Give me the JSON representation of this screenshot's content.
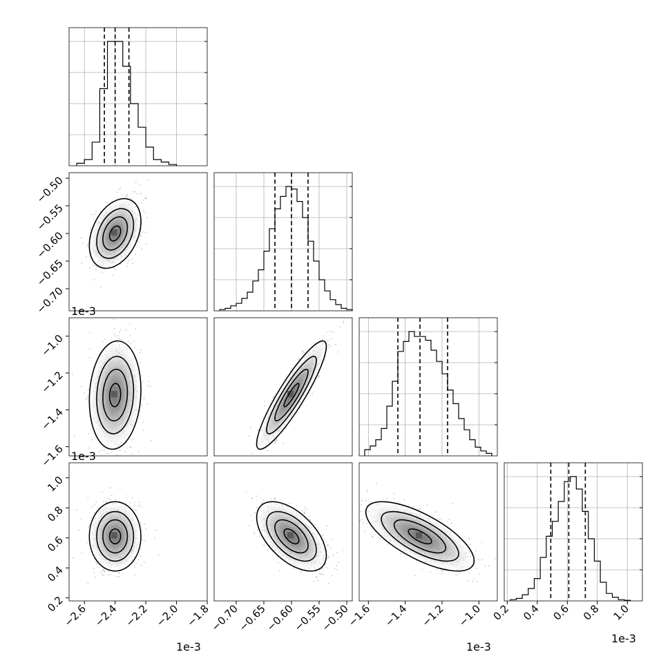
{
  "chart_data": [
    {
      "panel": "hist-0",
      "type": "bar",
      "style": "step histogram",
      "x_offset_label": "1e-3",
      "xlim": [
        -2.7,
        -1.8
      ],
      "xticks": [
        "-2.6",
        "-2.4",
        "-2.2",
        "-2.0",
        "-1.8"
      ],
      "xtick_values": [
        -2.6,
        -2.4,
        -2.2,
        -2.0,
        -1.8
      ],
      "bin_edges": [
        -2.65,
        -2.6,
        -2.55,
        -2.5,
        -2.45,
        -2.4,
        -2.35,
        -2.3,
        -2.25,
        -2.2,
        -2.15,
        -2.1,
        -2.05,
        -2.0
      ],
      "counts": [
        0.02,
        0.05,
        0.19,
        0.62,
        1.0,
        1.0,
        0.8,
        0.5,
        0.31,
        0.15,
        0.05,
        0.03,
        0.01
      ],
      "quantiles": [
        -2.47,
        -2.4,
        -2.31
      ],
      "grid": true
    },
    {
      "panel": "hist-1",
      "type": "bar",
      "style": "step histogram",
      "xlim": [
        -0.74,
        -0.49
      ],
      "xtick_values": [
        -0.7,
        -0.65,
        -0.6,
        -0.55,
        -0.5
      ],
      "bin_edges": [
        -0.73,
        -0.72,
        -0.71,
        -0.7,
        -0.69,
        -0.68,
        -0.67,
        -0.66,
        -0.65,
        -0.64,
        -0.63,
        -0.62,
        -0.61,
        -0.6,
        -0.59,
        -0.58,
        -0.57,
        -0.56,
        -0.55,
        -0.54,
        -0.53,
        -0.52,
        -0.51,
        -0.5,
        -0.49
      ],
      "counts": [
        0.01,
        0.02,
        0.04,
        0.06,
        0.1,
        0.15,
        0.24,
        0.33,
        0.48,
        0.66,
        0.82,
        0.92,
        1.0,
        0.98,
        0.88,
        0.75,
        0.56,
        0.4,
        0.25,
        0.16,
        0.09,
        0.05,
        0.02,
        0.01
      ],
      "quantiles": [
        -0.63,
        -0.6,
        -0.57
      ],
      "grid": true
    },
    {
      "panel": "hist-2",
      "type": "bar",
      "style": "step histogram",
      "x_offset_label": "1e-3",
      "xlim": [
        -1.65,
        -0.9
      ],
      "xticks": [
        "-1.6",
        "-1.4",
        "-1.2",
        "-1.0"
      ],
      "xtick_values": [
        -1.6,
        -1.4,
        -1.2,
        -1.0
      ],
      "bin_edges": [
        -1.62,
        -1.59,
        -1.56,
        -1.53,
        -1.5,
        -1.47,
        -1.44,
        -1.41,
        -1.38,
        -1.35,
        -1.32,
        -1.29,
        -1.26,
        -1.23,
        -1.2,
        -1.17,
        -1.14,
        -1.11,
        -1.08,
        -1.05,
        -1.02,
        -0.99,
        -0.96,
        -0.93
      ],
      "counts": [
        0.05,
        0.08,
        0.13,
        0.22,
        0.4,
        0.6,
        0.84,
        0.92,
        1.0,
        0.96,
        0.96,
        0.93,
        0.85,
        0.76,
        0.66,
        0.53,
        0.42,
        0.3,
        0.21,
        0.13,
        0.07,
        0.04,
        0.02
      ],
      "quantiles": [
        -1.44,
        -1.32,
        -1.17
      ],
      "grid": true
    },
    {
      "panel": "hist-3",
      "type": "bar",
      "style": "step histogram",
      "x_offset_label": "1e-3",
      "xlim": [
        0.18,
        1.1
      ],
      "xticks": [
        "0.2",
        "0.4",
        "0.6",
        "0.8",
        "1.0"
      ],
      "xtick_values": [
        0.2,
        0.4,
        0.6,
        0.8,
        1.0
      ],
      "bin_edges": [
        0.22,
        0.26,
        0.3,
        0.34,
        0.38,
        0.42,
        0.46,
        0.5,
        0.54,
        0.58,
        0.62,
        0.66,
        0.7,
        0.74,
        0.78,
        0.82,
        0.86,
        0.9,
        0.94,
        0.98,
        1.02
      ],
      "counts": [
        0.01,
        0.02,
        0.05,
        0.1,
        0.18,
        0.35,
        0.52,
        0.64,
        0.8,
        0.96,
        1.0,
        0.9,
        0.72,
        0.5,
        0.32,
        0.15,
        0.06,
        0.03,
        0.01,
        0.005
      ],
      "quantiles": [
        0.49,
        0.61,
        0.72
      ],
      "grid": true
    },
    {
      "panel": "2d-1-0",
      "type": "scatter",
      "style": "2d density contours",
      "x_offset_label": "1e-3",
      "xlim": [
        -2.7,
        -1.8
      ],
      "ylim": [
        -0.74,
        -0.49
      ],
      "yticks": [
        "-0.50",
        "-0.55",
        "-0.60",
        "-0.65",
        "-0.70"
      ],
      "ytick_values": [
        -0.5,
        -0.55,
        -0.6,
        -0.65,
        -0.7
      ],
      "center": [
        -2.4,
        -0.6
      ],
      "spread": [
        0.08,
        0.03
      ],
      "correlation": 0.35
    },
    {
      "panel": "2d-2-0",
      "type": "scatter",
      "style": "2d density contours",
      "x_offset_label": "1e-3",
      "xlim": [
        -2.7,
        -1.8
      ],
      "ylim": [
        -1.65,
        -0.9
      ],
      "yticks": [
        "-1.0",
        "-1.2",
        "-1.4",
        "-1.6"
      ],
      "ytick_values": [
        -1.0,
        -1.2,
        -1.4,
        -1.6
      ],
      "center": [
        -2.4,
        -1.32
      ],
      "spread": [
        0.08,
        0.14
      ],
      "correlation": 0.1
    },
    {
      "panel": "2d-2-1",
      "type": "scatter",
      "style": "2d density contours",
      "xlim": [
        -0.74,
        -0.49
      ],
      "ylim": [
        -1.65,
        -0.9
      ],
      "center": [
        -0.6,
        -1.32
      ],
      "spread": [
        0.03,
        0.14
      ],
      "correlation": 0.9
    },
    {
      "panel": "2d-3-0",
      "type": "scatter",
      "style": "2d density contours",
      "xlim": [
        -2.7,
        -1.8
      ],
      "ylim": [
        0.18,
        1.1
      ],
      "yticks": [
        "1.0",
        "0.8",
        "0.6",
        "0.4",
        "0.2"
      ],
      "ytick_values": [
        1.0,
        0.8,
        0.6,
        0.4,
        0.2
      ],
      "center": [
        -2.4,
        0.61
      ],
      "spread": [
        0.08,
        0.11
      ],
      "correlation": 0.0
    },
    {
      "panel": "2d-3-1",
      "type": "scatter",
      "style": "2d density contours",
      "xlim": [
        -0.74,
        -0.49
      ],
      "ylim": [
        0.18,
        1.1
      ],
      "center": [
        -0.6,
        0.61
      ],
      "spread": [
        0.03,
        0.11
      ],
      "correlation": -0.55
    },
    {
      "panel": "2d-3-2",
      "type": "scatter",
      "style": "2d density contours",
      "xlim": [
        -1.65,
        -0.9
      ],
      "ylim": [
        0.18,
        1.1
      ],
      "center": [
        -1.32,
        0.61
      ],
      "spread": [
        0.14,
        0.11
      ],
      "correlation": -0.7
    }
  ],
  "offset_labels": {
    "bottom_col0": "1e-3",
    "bottom_col2": "1e-3",
    "bottom_col3": "1e-3",
    "row1_left": "1e-3",
    "row2_left": "1e-3"
  },
  "colors": {
    "line": "#000000",
    "grid": "#b0b0b0",
    "scatter_points": "#9a9a9a",
    "density_low": "#ffffff",
    "density_high": "#000000"
  }
}
